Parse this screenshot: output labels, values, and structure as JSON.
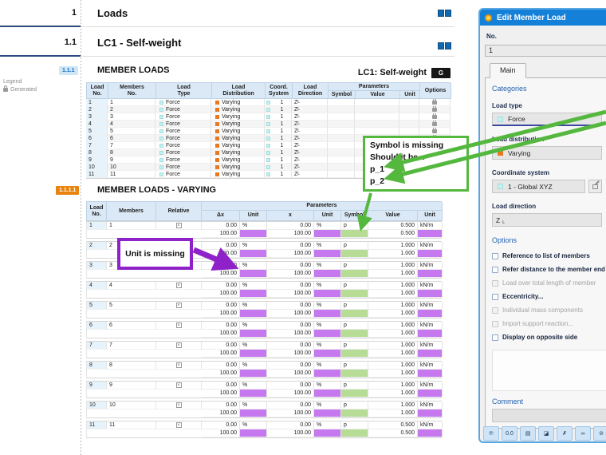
{
  "page": {
    "sections": [
      {
        "number": "1",
        "title": "Loads"
      },
      {
        "number": "1.1",
        "title": "LC1 - Self-weight"
      }
    ]
  },
  "legend": {
    "title": "Legend",
    "items": [
      {
        "icon": "lock-icon",
        "label": "Generated"
      }
    ]
  },
  "table1": {
    "section_number": "1.1.1",
    "title": "MEMBER LOADS",
    "case_label": "LC1: Self-weight",
    "case_badge": "G",
    "group_header": "Parameters",
    "columns": [
      [
        "Load",
        "No."
      ],
      [
        "Members",
        "No."
      ],
      [
        "Load",
        "Type"
      ],
      [
        "Load",
        "Distribution"
      ],
      [
        "Coord.",
        "System"
      ],
      [
        "Load",
        "Direction"
      ],
      [
        "",
        "Symbol"
      ],
      [
        "",
        "Value"
      ],
      [
        "",
        "Unit"
      ],
      [
        "",
        "Options"
      ]
    ],
    "common": {
      "load_type": "Force",
      "load_distribution": "Varying",
      "coord_system": "1",
      "load_direction_main": "Z",
      "load_direction_sub": "L"
    },
    "rows": [
      {
        "load_no": "1",
        "members_no": "1",
        "generated": true
      },
      {
        "load_no": "2",
        "members_no": "2",
        "generated": true
      },
      {
        "load_no": "3",
        "members_no": "3",
        "generated": true
      },
      {
        "load_no": "4",
        "members_no": "4",
        "generated": true
      },
      {
        "load_no": "5",
        "members_no": "5",
        "generated": true
      },
      {
        "load_no": "6",
        "members_no": "6",
        "generated": true
      },
      {
        "load_no": "7",
        "members_no": "7",
        "generated": true
      },
      {
        "load_no": "8",
        "members_no": "8",
        "generated": true
      },
      {
        "load_no": "9",
        "members_no": "9",
        "generated": true
      },
      {
        "load_no": "10",
        "members_no": "10",
        "generated": true
      },
      {
        "load_no": "11",
        "members_no": "11",
        "generated": true
      }
    ]
  },
  "table2": {
    "section_number": "1.1.1.1",
    "title": "MEMBER LOADS - VARYING",
    "group_header": "Parameters",
    "columns": [
      [
        "Load",
        "No."
      ],
      [
        "",
        "Members"
      ],
      [
        "",
        "Relative"
      ],
      [
        "",
        "Δx"
      ],
      [
        "",
        "Unit"
      ],
      [
        "",
        "x"
      ],
      [
        "",
        "Unit"
      ],
      [
        "",
        "Symbol"
      ],
      [
        "",
        "Value"
      ],
      [
        "",
        "Unit"
      ]
    ],
    "common": {
      "dx": [
        "0.00",
        "100.00"
      ],
      "dx_unit": [
        "%",
        ""
      ],
      "x": [
        "0.00",
        "100.00"
      ],
      "x_unit": [
        "%",
        ""
      ],
      "symbol": [
        "p",
        ""
      ],
      "value_unit": [
        "kN/m",
        ""
      ],
      "relative_checked": true
    },
    "rows": [
      {
        "load_no": "1",
        "members": "1",
        "values": [
          "0.500",
          "0.500"
        ]
      },
      {
        "load_no": "2",
        "members": "2",
        "values": [
          "1.000",
          "1.000"
        ]
      },
      {
        "load_no": "3",
        "members": "3",
        "values": [
          "1.000",
          "1.000"
        ]
      },
      {
        "load_no": "4",
        "members": "4",
        "values": [
          "1.000",
          "1.000"
        ]
      },
      {
        "load_no": "5",
        "members": "5",
        "values": [
          "1.000",
          "1.000"
        ]
      },
      {
        "load_no": "6",
        "members": "6",
        "values": [
          "1.000",
          "1.000"
        ]
      },
      {
        "load_no": "7",
        "members": "7",
        "values": [
          "1.000",
          "1.000"
        ]
      },
      {
        "load_no": "8",
        "members": "8",
        "values": [
          "1.000",
          "1.000"
        ]
      },
      {
        "load_no": "9",
        "members": "9",
        "values": [
          "1.000",
          "1.000"
        ]
      },
      {
        "load_no": "10",
        "members": "10",
        "values": [
          "1.000",
          "1.000"
        ]
      },
      {
        "load_no": "11",
        "members": "11",
        "values": [
          "0.500",
          "0.500"
        ]
      }
    ]
  },
  "annotations": {
    "symbol_note": {
      "lines": [
        "Symbol is missing",
        "Should it be...",
        "p_1",
        "p_2"
      ],
      "color": "#55b83e"
    },
    "unit_note": {
      "text": "Unit is missing",
      "color": "#8e22c8"
    }
  },
  "dialog": {
    "title": "Edit Member Load",
    "no_label": "No.",
    "no_value": "1",
    "tab": "Main",
    "categories_label": "Categories",
    "fields": {
      "load_type": {
        "label": "Load type",
        "value": "Force"
      },
      "load_distribution": {
        "label": "Load distribution",
        "value": "Varying"
      },
      "coordinate_system": {
        "label": "Coordinate system",
        "value": "1 - Global XYZ"
      },
      "load_direction": {
        "label": "Load direction",
        "value_main": "Z",
        "value_sub": "L"
      }
    },
    "options": {
      "label": "Options",
      "items": [
        {
          "label": "Reference to list of members",
          "enabled": true,
          "checked": false
        },
        {
          "label": "Refer distance to the member end",
          "enabled": true,
          "checked": false
        },
        {
          "label": "Load over total length of member",
          "enabled": false,
          "checked": false
        },
        {
          "label": "Eccentricity...",
          "enabled": true,
          "checked": false
        },
        {
          "label": "Individual mass components",
          "enabled": false,
          "checked": false
        },
        {
          "label": "Import support reaction...",
          "enabled": false,
          "checked": false
        },
        {
          "label": "Display on opposite side",
          "enabled": true,
          "checked": false
        }
      ]
    },
    "comment_label": "Comment",
    "toolbar": [
      {
        "name": "symbol-info-icon",
        "glyph": "℗"
      },
      {
        "name": "units-decimal-places-icon",
        "glyph": "0.0"
      },
      {
        "name": "display-properties-icon",
        "glyph": "▤"
      },
      {
        "name": "rendering-icon",
        "glyph": "◪"
      },
      {
        "name": "delete-stamp-icon",
        "glyph": "✗"
      },
      {
        "name": "link-icon",
        "glyph": "∞"
      },
      {
        "name": "unlink-icon",
        "glyph": "⊘"
      }
    ]
  },
  "colors": {
    "accent_blue": "#1580d8",
    "header_bg": "#dbe9f6",
    "cyan_swatch": "#c6f1f1",
    "orange_swatch": "#e87920",
    "purple_highlight": "#c678ee",
    "green_highlight": "#b7dc95",
    "annotation_green": "#55b83e",
    "annotation_purple": "#8e22c8"
  }
}
